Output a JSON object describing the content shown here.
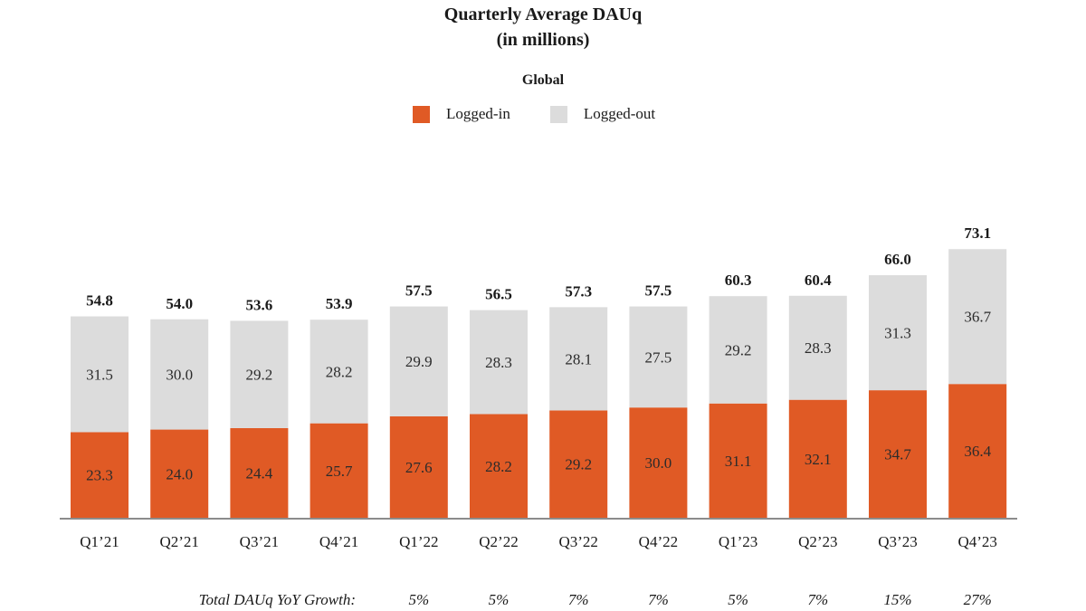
{
  "chart_data": {
    "type": "bar",
    "stacked": true,
    "title": "Quarterly Average DAUq",
    "subtitle": "(in millions)",
    "region_label": "Global",
    "categories": [
      "Q1’21",
      "Q2’21",
      "Q3’21",
      "Q4’21",
      "Q1’22",
      "Q2’22",
      "Q3’22",
      "Q4’22",
      "Q1’23",
      "Q2’23",
      "Q3’23",
      "Q4’23"
    ],
    "series": [
      {
        "name": "Logged-in",
        "color": "#e05a25",
        "values": [
          23.3,
          24.0,
          24.4,
          25.7,
          27.6,
          28.2,
          29.2,
          30.0,
          31.1,
          32.1,
          34.7,
          36.4
        ]
      },
      {
        "name": "Logged-out",
        "color": "#dcdcdc",
        "values": [
          31.5,
          30.0,
          29.2,
          28.2,
          29.9,
          28.3,
          28.1,
          27.5,
          29.2,
          28.3,
          31.3,
          36.7
        ]
      }
    ],
    "totals": [
      54.8,
      54.0,
      53.6,
      53.9,
      57.5,
      56.5,
      57.3,
      57.5,
      60.3,
      60.4,
      66.0,
      73.1
    ],
    "value_labels": {
      "logged_in": [
        "23.3",
        "24.0",
        "24.4",
        "25.7",
        "27.6",
        "28.2",
        "29.2",
        "30.0",
        "31.1",
        "32.1",
        "34.7",
        "36.4"
      ],
      "logged_out": [
        "31.5",
        "30.0",
        "29.2",
        "28.2",
        "29.9",
        "28.3",
        "28.1",
        "27.5",
        "29.2",
        "28.3",
        "31.3",
        "36.7"
      ],
      "totals": [
        "54.8",
        "54.0",
        "53.6",
        "53.9",
        "57.5",
        "56.5",
        "57.3",
        "57.5",
        "60.3",
        "60.4",
        "66.0",
        "73.1"
      ]
    },
    "legend_position": "top-center",
    "grid": false,
    "xlabel": "",
    "ylabel": "",
    "growth_row": {
      "label": "Total DAUq YoY Growth:",
      "categories": [
        "Q1’22",
        "Q2’22",
        "Q3’22",
        "Q4’22",
        "Q1’23",
        "Q2’23",
        "Q3’23",
        "Q4’23"
      ],
      "values": [
        "5%",
        "5%",
        "7%",
        "7%",
        "5%",
        "7%",
        "15%",
        "27%"
      ]
    },
    "axis_color": "#8c8c8c"
  }
}
